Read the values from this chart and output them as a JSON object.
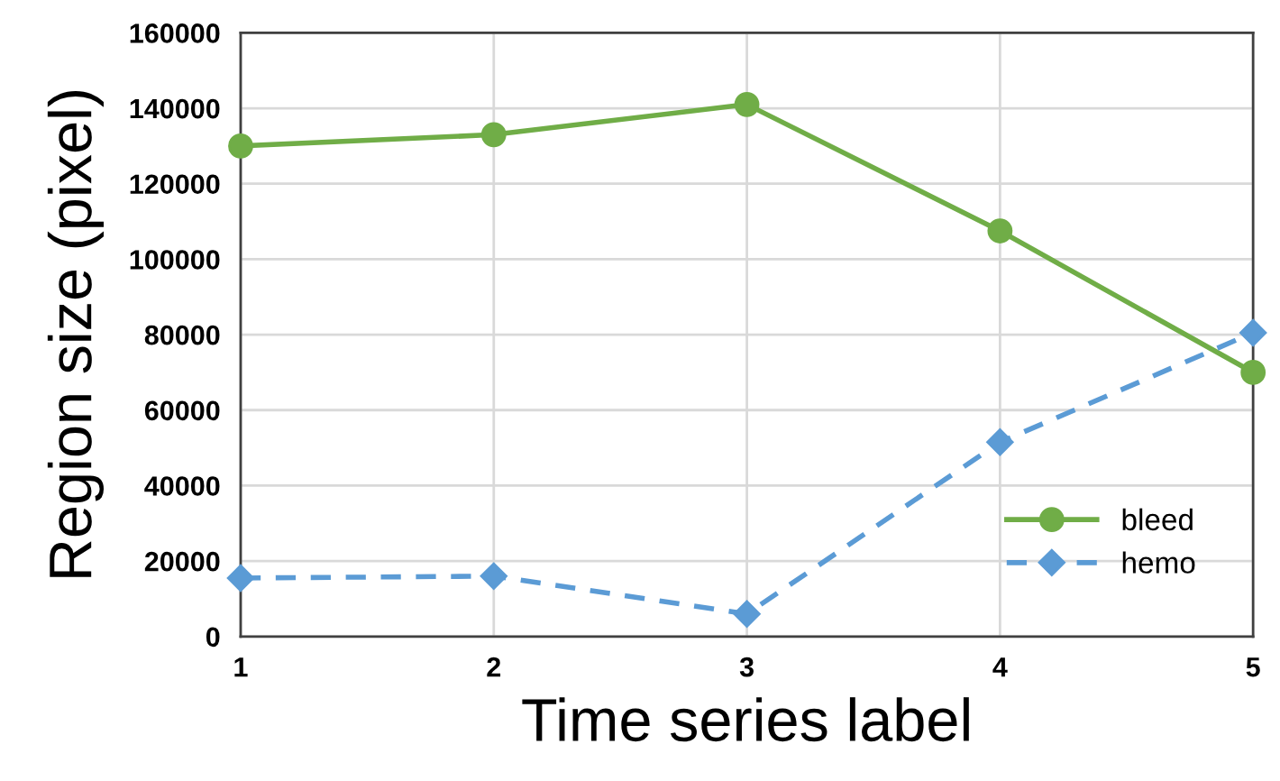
{
  "chart_data": {
    "type": "line",
    "xlabel": "Time series label",
    "ylabel": "Region size (pixel)",
    "x": [
      1,
      2,
      3,
      4,
      5
    ],
    "xlim": [
      1,
      5
    ],
    "xticks": [
      1,
      2,
      3,
      4,
      5
    ],
    "ylim": [
      0,
      160000
    ],
    "yticks": [
      0,
      20000,
      40000,
      60000,
      80000,
      100000,
      120000,
      140000,
      160000
    ],
    "grid": true,
    "legend": "bottom right",
    "series": [
      {
        "name": "bleed",
        "color": "#70ad47",
        "values": [
          130000,
          133000,
          141000,
          107500,
          70000
        ],
        "marker": "circle",
        "line_style": "solid"
      },
      {
        "name": "hemo",
        "color": "#5b9bd5",
        "values": [
          15500,
          16000,
          6000,
          51500,
          80500
        ],
        "marker": "diamond",
        "line_style": "dashed"
      }
    ]
  }
}
